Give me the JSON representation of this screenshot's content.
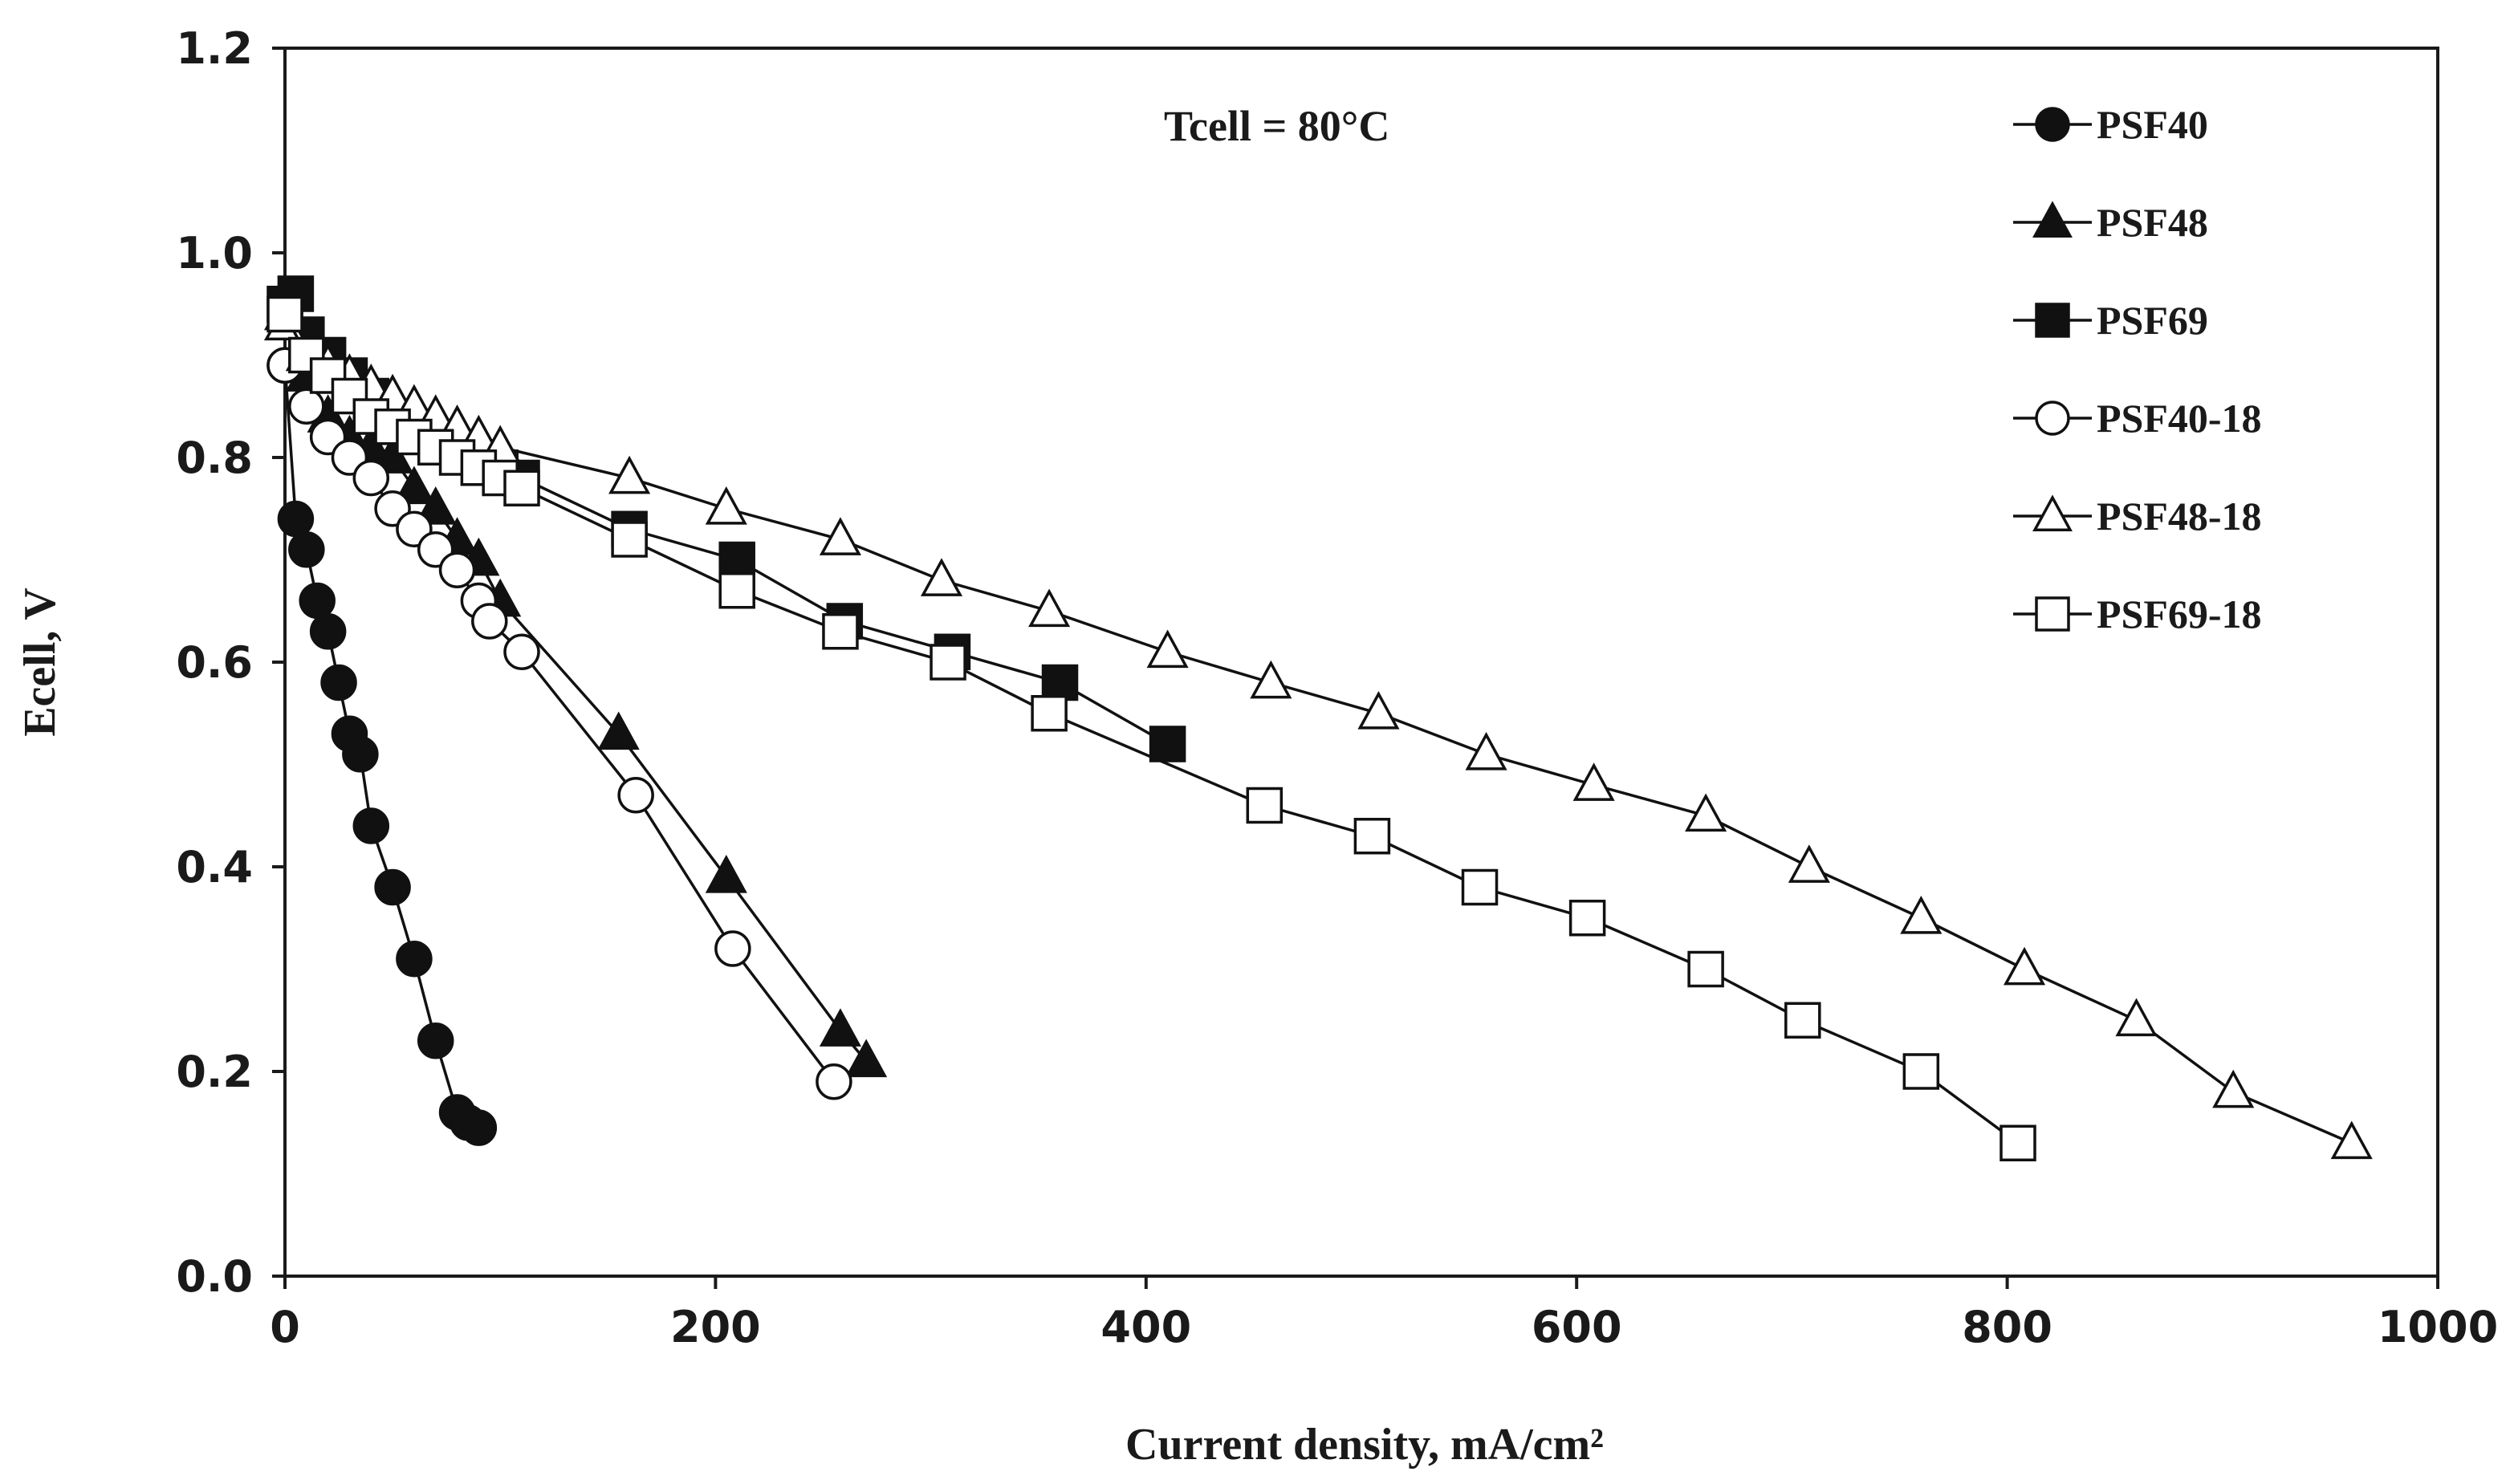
{
  "chart_data": {
    "type": "line",
    "title": "",
    "xlabel": "Current density, mA/cm²",
    "ylabel": "Ecell, V",
    "xlim": [
      0,
      1000
    ],
    "ylim": [
      0,
      1.2
    ],
    "xticks": [
      0,
      200,
      400,
      600,
      800,
      1000
    ],
    "yticks": [
      0.0,
      0.2,
      0.4,
      0.6,
      0.8,
      1.0,
      1.2
    ],
    "xtick_labels": [
      "0",
      "200",
      "400",
      "600",
      "800",
      "1000"
    ],
    "ytick_labels": [
      "0.0",
      "0.2",
      "0.4",
      "0.6",
      "0.8",
      "1.0",
      "1.2"
    ],
    "grid": false,
    "legend_position": "top-right",
    "annotation": "Tcell = 80°C",
    "series": [
      {
        "name": "PSF40",
        "marker": "circle",
        "filled": true,
        "x": [
          0,
          5,
          10,
          15,
          20,
          25,
          30,
          35,
          40,
          50,
          60,
          70,
          80,
          85,
          90
        ],
        "y": [
          0.89,
          0.74,
          0.71,
          0.66,
          0.63,
          0.58,
          0.53,
          0.51,
          0.44,
          0.38,
          0.31,
          0.23,
          0.16,
          0.15,
          0.145
        ]
      },
      {
        "name": "PSF48",
        "marker": "triangle",
        "filled": true,
        "x": [
          0,
          10,
          20,
          30,
          40,
          50,
          60,
          70,
          80,
          90,
          100,
          155,
          205,
          258,
          270
        ],
        "y": [
          0.94,
          0.88,
          0.84,
          0.82,
          0.81,
          0.8,
          0.77,
          0.75,
          0.72,
          0.7,
          0.66,
          0.53,
          0.39,
          0.24,
          0.21
        ]
      },
      {
        "name": "PSF69",
        "marker": "square",
        "filled": true,
        "x": [
          0,
          5,
          10,
          20,
          30,
          40,
          50,
          60,
          70,
          80,
          90,
          100,
          110,
          160,
          210,
          260,
          310,
          360,
          410
        ],
        "y": [
          0.95,
          0.96,
          0.92,
          0.9,
          0.88,
          0.86,
          0.84,
          0.83,
          0.82,
          0.81,
          0.8,
          0.79,
          0.78,
          0.73,
          0.7,
          0.64,
          0.61,
          0.58,
          0.52
        ]
      },
      {
        "name": "PSF40-18",
        "marker": "circle",
        "filled": false,
        "x": [
          0,
          10,
          20,
          30,
          40,
          50,
          60,
          70,
          80,
          90,
          95,
          110,
          163,
          208,
          255
        ],
        "y": [
          0.89,
          0.85,
          0.82,
          0.8,
          0.78,
          0.75,
          0.73,
          0.71,
          0.69,
          0.66,
          0.64,
          0.61,
          0.47,
          0.32,
          0.19
        ]
      },
      {
        "name": "PSF48-18",
        "marker": "triangle",
        "filled": false,
        "x": [
          0,
          10,
          20,
          30,
          40,
          50,
          60,
          70,
          80,
          90,
          100,
          160,
          205,
          258,
          305,
          355,
          410,
          458,
          508,
          558,
          608,
          660,
          708,
          760,
          808,
          860,
          905,
          960
        ],
        "y": [
          0.93,
          0.9,
          0.89,
          0.88,
          0.87,
          0.86,
          0.85,
          0.84,
          0.83,
          0.82,
          0.81,
          0.78,
          0.75,
          0.72,
          0.68,
          0.65,
          0.61,
          0.58,
          0.55,
          0.51,
          0.48,
          0.45,
          0.4,
          0.35,
          0.3,
          0.25,
          0.18,
          0.13
        ]
      },
      {
        "name": "PSF69-18",
        "marker": "square",
        "filled": false,
        "x": [
          0,
          10,
          20,
          30,
          40,
          50,
          60,
          70,
          80,
          90,
          100,
          110,
          160,
          210,
          258,
          308,
          355,
          455,
          505,
          555,
          605,
          660,
          705,
          760,
          805
        ],
        "y": [
          0.94,
          0.9,
          0.88,
          0.86,
          0.84,
          0.83,
          0.82,
          0.81,
          0.8,
          0.79,
          0.78,
          0.77,
          0.72,
          0.67,
          0.63,
          0.6,
          0.55,
          0.46,
          0.43,
          0.38,
          0.35,
          0.3,
          0.25,
          0.2,
          0.13
        ]
      }
    ]
  }
}
